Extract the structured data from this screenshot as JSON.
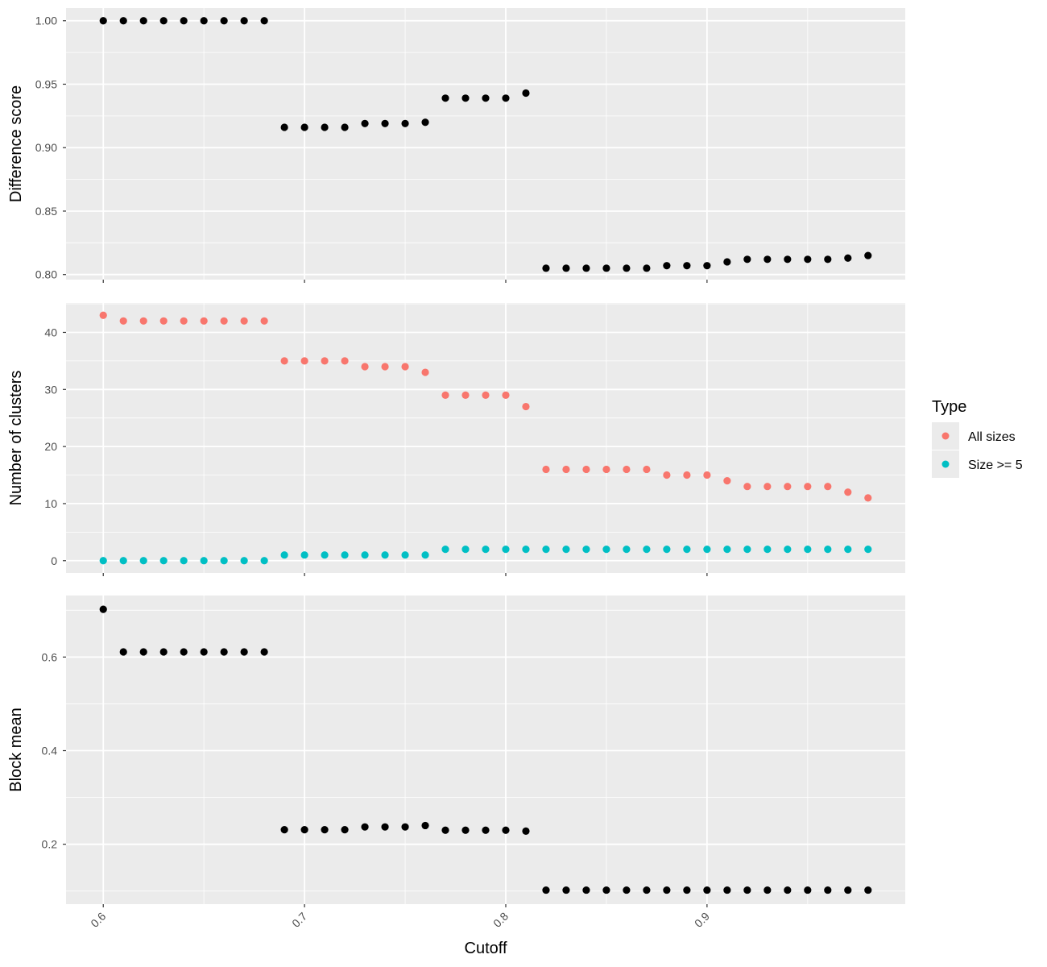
{
  "chart_data": {
    "type": "scatter",
    "x": [
      0.6,
      0.61,
      0.62,
      0.63,
      0.64,
      0.65,
      0.66,
      0.67,
      0.68,
      0.69,
      0.7,
      0.71,
      0.72,
      0.73,
      0.74,
      0.75,
      0.76,
      0.77,
      0.78,
      0.79,
      0.8,
      0.81,
      0.82,
      0.83,
      0.84,
      0.85,
      0.86,
      0.87,
      0.88,
      0.89,
      0.9,
      0.91,
      0.92,
      0.93,
      0.94,
      0.95,
      0.96,
      0.97,
      0.98
    ],
    "xlabel": "Cutoff",
    "xlim": [
      0.5815,
      0.9985
    ],
    "x_ticks": [
      0.6,
      0.7,
      0.8,
      0.9
    ],
    "x_tick_labels": [
      "0.6",
      "0.7",
      "0.8",
      "0.9"
    ],
    "grid": true,
    "legend_position": "right",
    "panels": [
      {
        "ylabel": "Difference score",
        "ylim": [
          0.796,
          1.01
        ],
        "y_ticks": [
          0.8,
          0.85,
          0.9,
          0.95,
          1.0
        ],
        "y_tick_labels": [
          "0.80",
          "0.85",
          "0.90",
          "0.95",
          "1.00"
        ],
        "series": [
          {
            "color": "#000000",
            "values": [
              1.0,
              1.0,
              1.0,
              1.0,
              1.0,
              1.0,
              1.0,
              1.0,
              1.0,
              0.916,
              0.916,
              0.916,
              0.916,
              0.919,
              0.919,
              0.919,
              0.92,
              0.939,
              0.939,
              0.939,
              0.939,
              0.943,
              0.805,
              0.805,
              0.805,
              0.805,
              0.805,
              0.805,
              0.807,
              0.807,
              0.807,
              0.81,
              0.812,
              0.812,
              0.812,
              0.812,
              0.812,
              0.813,
              0.815
            ]
          }
        ]
      },
      {
        "ylabel": "Number of clusters",
        "ylim": [
          -2.15,
          45.15
        ],
        "y_ticks": [
          0,
          10,
          20,
          30,
          40
        ],
        "y_tick_labels": [
          "0",
          "10",
          "20",
          "30",
          "40"
        ],
        "series": [
          {
            "name": "All sizes",
            "color": "#F8766D",
            "values": [
              43,
              42,
              42,
              42,
              42,
              42,
              42,
              42,
              42,
              35,
              35,
              35,
              35,
              34,
              34,
              34,
              33,
              29,
              29,
              29,
              29,
              27,
              16,
              16,
              16,
              16,
              16,
              16,
              15,
              15,
              15,
              14,
              13,
              13,
              13,
              13,
              13,
              12,
              11
            ]
          },
          {
            "name": "Size >= 5",
            "color": "#00BFC4",
            "values": [
              0,
              0,
              0,
              0,
              0,
              0,
              0,
              0,
              0,
              1,
              1,
              1,
              1,
              1,
              1,
              1,
              1,
              2,
              2,
              2,
              2,
              2,
              2,
              2,
              2,
              2,
              2,
              2,
              2,
              2,
              2,
              2,
              2,
              2,
              2,
              2,
              2,
              2,
              2
            ]
          }
        ]
      },
      {
        "ylabel": "Block mean",
        "ylim": [
          0.072,
          0.7315
        ],
        "y_ticks": [
          0.2,
          0.4,
          0.6
        ],
        "y_tick_labels": [
          "0.2",
          "0.4",
          "0.6"
        ],
        "series": [
          {
            "color": "#000000",
            "values": [
              0.702,
              0.611,
              0.611,
              0.611,
              0.611,
              0.611,
              0.611,
              0.611,
              0.611,
              0.231,
              0.231,
              0.231,
              0.231,
              0.237,
              0.237,
              0.237,
              0.24,
              0.23,
              0.23,
              0.23,
              0.23,
              0.228,
              0.102,
              0.102,
              0.102,
              0.102,
              0.102,
              0.102,
              0.102,
              0.102,
              0.102,
              0.102,
              0.102,
              0.102,
              0.102,
              0.102,
              0.102,
              0.102,
              0.102
            ]
          }
        ]
      }
    ],
    "legend": {
      "title": "Type",
      "entries": [
        {
          "label": "All sizes",
          "color": "#F8766D"
        },
        {
          "label": "Size >= 5",
          "color": "#00BFC4"
        }
      ]
    }
  }
}
